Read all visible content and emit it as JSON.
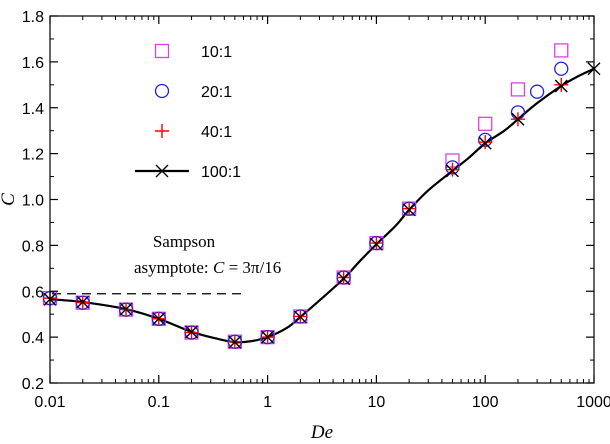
{
  "chart_data": {
    "type": "scatter",
    "title": "",
    "xlabel": "De",
    "ylabel": "C",
    "xscale": "log",
    "xlim": [
      0.01,
      1000
    ],
    "ylim": [
      0.2,
      1.8
    ],
    "grid": false,
    "legend_position": "top-left",
    "x_ticks": [
      "0.01",
      "0.1",
      "1",
      "10",
      "100",
      "1000"
    ],
    "y_ticks": [
      "0.2",
      "0.4",
      "0.6",
      "0.8",
      "1.0",
      "1.2",
      "1.4",
      "1.6",
      "1.8"
    ],
    "series": [
      {
        "name": "10:1",
        "marker": "square",
        "color": "#e040e0",
        "x": [
          0.01,
          0.02,
          0.05,
          0.1,
          0.2,
          0.5,
          1,
          2,
          5,
          10,
          20,
          50,
          100,
          200,
          500
        ],
        "y": [
          0.57,
          0.55,
          0.52,
          0.48,
          0.42,
          0.38,
          0.4,
          0.49,
          0.66,
          0.81,
          0.96,
          1.17,
          1.33,
          1.48,
          1.65
        ]
      },
      {
        "name": "20:1",
        "marker": "circle",
        "color": "#2020e0",
        "x": [
          0.01,
          0.02,
          0.05,
          0.1,
          0.2,
          0.5,
          1,
          2,
          5,
          10,
          20,
          50,
          100,
          200,
          300,
          500
        ],
        "y": [
          0.57,
          0.55,
          0.52,
          0.48,
          0.42,
          0.38,
          0.4,
          0.49,
          0.66,
          0.81,
          0.96,
          1.14,
          1.26,
          1.38,
          1.47,
          1.57
        ]
      },
      {
        "name": "40:1",
        "marker": "plus",
        "color": "#ff0000",
        "x": [
          0.01,
          0.02,
          0.05,
          0.1,
          0.2,
          0.5,
          1,
          2,
          5,
          10,
          20,
          50,
          100,
          200,
          500
        ],
        "y": [
          0.57,
          0.55,
          0.52,
          0.48,
          0.42,
          0.38,
          0.4,
          0.49,
          0.66,
          0.81,
          0.96,
          1.13,
          1.25,
          1.35,
          1.5
        ]
      },
      {
        "name": "100:1",
        "marker": "x-line",
        "color": "#000000",
        "x": [
          0.01,
          0.02,
          0.05,
          0.1,
          0.2,
          0.5,
          1,
          2,
          5,
          10,
          20,
          50,
          100,
          200,
          500,
          1000
        ],
        "y": [
          0.565,
          0.553,
          0.522,
          0.48,
          0.423,
          0.378,
          0.4,
          0.488,
          0.655,
          0.805,
          0.955,
          1.125,
          1.245,
          1.35,
          1.495,
          1.57
        ],
        "curve_x": [
          0.01,
          0.02,
          0.05,
          0.1,
          0.2,
          0.35,
          0.5,
          0.7,
          1,
          1.5,
          2,
          3,
          5,
          7,
          10,
          15,
          20,
          30,
          50,
          70,
          100,
          150,
          200,
          300,
          500,
          700,
          1000
        ],
        "curve_y": [
          0.565,
          0.553,
          0.522,
          0.48,
          0.423,
          0.392,
          0.378,
          0.382,
          0.4,
          0.44,
          0.488,
          0.56,
          0.655,
          0.73,
          0.805,
          0.885,
          0.955,
          1.04,
          1.125,
          1.18,
          1.245,
          1.3,
          1.35,
          1.42,
          1.495,
          1.535,
          1.57
        ]
      }
    ],
    "annotations": [
      {
        "line1": "Sampson",
        "line2": "asymptote:",
        "equation_var": "C",
        "equation_rest": " = 3π/16",
        "value": 0.589,
        "x_range": [
          0.01,
          0.6
        ]
      }
    ]
  }
}
